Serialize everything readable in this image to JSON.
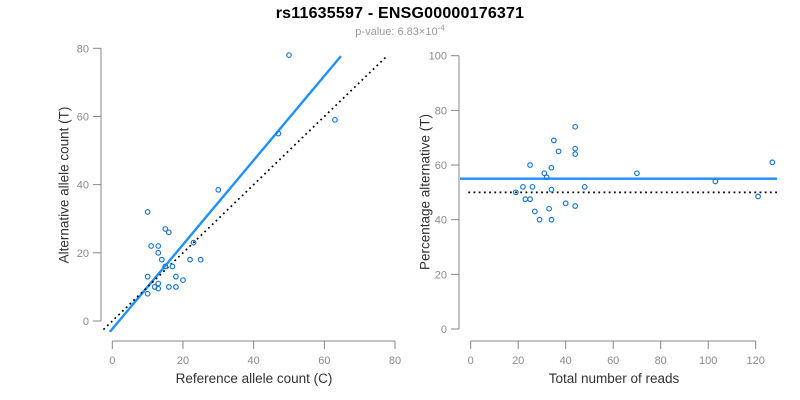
{
  "header": {
    "title": "rs11635597 - ENSG00000176371",
    "p_value_prefix": "p-value: 6.83×10",
    "p_value_exponent": "-4"
  },
  "colors": {
    "blue_line": "#1E90FF",
    "point_stroke": "#1B78D4",
    "dotted_line": "#000000",
    "axis": "#878787",
    "tick_text": "#8a8a8a",
    "axis_label": "#333333",
    "title_text": "#000000",
    "subtitle_text": "#9b9b9b",
    "background": "#ffffff"
  },
  "chart_data": [
    {
      "type": "scatter",
      "panel": "left",
      "xlabel": "Reference allele count (C)",
      "ylabel": "Alternative allele count (T)",
      "xlim": [
        0,
        80
      ],
      "ylim": [
        0,
        80
      ],
      "x_ticks": [
        0,
        20,
        40,
        60,
        80
      ],
      "y_ticks": [
        0,
        20,
        40,
        60,
        80
      ],
      "grid": false,
      "legend": null,
      "points": [
        [
          50,
          78
        ],
        [
          63,
          59
        ],
        [
          47,
          55
        ],
        [
          30,
          38.5
        ],
        [
          10,
          32
        ],
        [
          15,
          27
        ],
        [
          16,
          26
        ],
        [
          23,
          23
        ],
        [
          11,
          22
        ],
        [
          13,
          22
        ],
        [
          13,
          20
        ],
        [
          14,
          18
        ],
        [
          22,
          18
        ],
        [
          25,
          18
        ],
        [
          15,
          16
        ],
        [
          17,
          16
        ],
        [
          10,
          13
        ],
        [
          18,
          13
        ],
        [
          20,
          12
        ],
        [
          13,
          11
        ],
        [
          12,
          10
        ],
        [
          13,
          9.5
        ],
        [
          16,
          10
        ],
        [
          18,
          10
        ],
        [
          10,
          8
        ]
      ],
      "lines": [
        {
          "name": "fitted-regression-line",
          "style": "solid",
          "color_key": "blue_line",
          "x1": -0.7,
          "y1": -3.2,
          "x2": 64.7,
          "y2": 77.7
        },
        {
          "name": "identity-line",
          "style": "dotted",
          "color_key": "dotted_line",
          "x1": -2.5,
          "y1": -2.5,
          "x2": 78,
          "y2": 78
        }
      ]
    },
    {
      "type": "scatter",
      "panel": "right",
      "xlabel": "Total number of reads",
      "ylabel": "Percentage alternative (T)",
      "xlim": [
        0,
        120
      ],
      "ylim": [
        0,
        100
      ],
      "x_ticks": [
        0,
        20,
        40,
        60,
        80,
        100,
        120
      ],
      "y_ticks": [
        0,
        20,
        40,
        60,
        80,
        100
      ],
      "grid": false,
      "legend": null,
      "points": [
        [
          44,
          74
        ],
        [
          35,
          69
        ],
        [
          37,
          65
        ],
        [
          44,
          66
        ],
        [
          44,
          64
        ],
        [
          25,
          60
        ],
        [
          34,
          59
        ],
        [
          31,
          57
        ],
        [
          32,
          55.5
        ],
        [
          22,
          52
        ],
        [
          26,
          52
        ],
        [
          34,
          51
        ],
        [
          48,
          52
        ],
        [
          19,
          50
        ],
        [
          23,
          47.5
        ],
        [
          25,
          47.5
        ],
        [
          40,
          46
        ],
        [
          44,
          45
        ],
        [
          27,
          43
        ],
        [
          33,
          44
        ],
        [
          29,
          40
        ],
        [
          34,
          40
        ],
        [
          70,
          57
        ],
        [
          103,
          54
        ],
        [
          127,
          61
        ],
        [
          121,
          48.5
        ]
      ],
      "lines": [
        {
          "name": "mean-percentage-line",
          "style": "solid",
          "color_key": "blue_line",
          "x1": -4.5,
          "y1": 55,
          "x2": 129,
          "y2": 55
        },
        {
          "name": "fifty-percent-line",
          "style": "dotted",
          "color_key": "dotted_line",
          "x1": -1,
          "y1": 50,
          "x2": 129,
          "y2": 50
        }
      ]
    }
  ]
}
